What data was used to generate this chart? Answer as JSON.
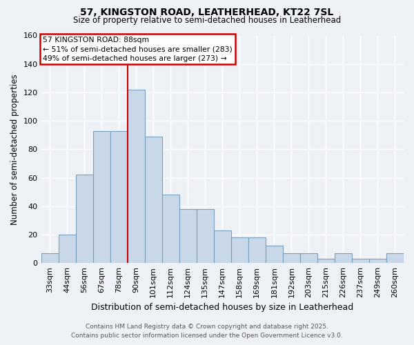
{
  "title1": "57, KINGSTON ROAD, LEATHERHEAD, KT22 7SL",
  "title2": "Size of property relative to semi-detached houses in Leatherhead",
  "xlabel": "Distribution of semi-detached houses by size in Leatherhead",
  "ylabel": "Number of semi-detached properties",
  "categories": [
    "33sqm",
    "44sqm",
    "56sqm",
    "67sqm",
    "78sqm",
    "90sqm",
    "101sqm",
    "112sqm",
    "124sqm",
    "135sqm",
    "147sqm",
    "158sqm",
    "169sqm",
    "181sqm",
    "192sqm",
    "203sqm",
    "215sqm",
    "226sqm",
    "237sqm",
    "249sqm",
    "260sqm"
  ],
  "values": [
    7,
    20,
    62,
    93,
    93,
    122,
    89,
    48,
    38,
    38,
    23,
    18,
    18,
    12,
    7,
    7,
    3,
    7,
    3,
    3,
    7
  ],
  "bar_color": "#c8d8e8",
  "bar_edge_color": "#7aa0be",
  "vline_x_index": 5,
  "vline_color": "#cc0000",
  "annotation_title": "57 KINGSTON ROAD: 88sqm",
  "annotation_line1": "← 51% of semi-detached houses are smaller (283)",
  "annotation_line2": "49% of semi-detached houses are larger (273) →",
  "annotation_box_color": "#cc0000",
  "footer1": "Contains HM Land Registry data © Crown copyright and database right 2025.",
  "footer2": "Contains public sector information licensed under the Open Government Licence v3.0.",
  "ylim": [
    0,
    160
  ],
  "yticks": [
    0,
    20,
    40,
    60,
    80,
    100,
    120,
    140,
    160
  ],
  "background_color": "#eef2f7",
  "grid_color": "#ffffff"
}
